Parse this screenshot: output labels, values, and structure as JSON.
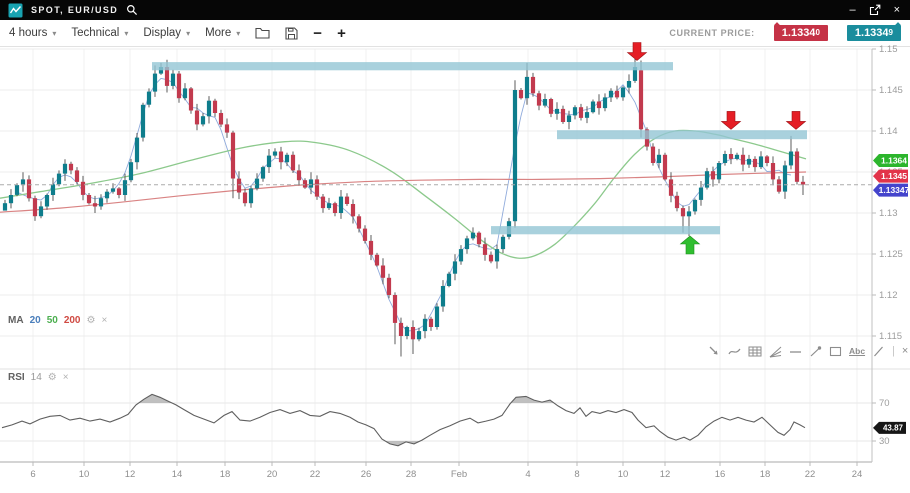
{
  "titlebar": {
    "title": "SPOT, EUR/USD",
    "logo_color": "#18a2b0"
  },
  "ui": {
    "caret": "▾",
    "gear_glyph": "⚙",
    "close_glyph": "×",
    "separator_glyph": "|",
    "minimize_glyph": "–",
    "window_close_glyph": "×"
  },
  "toolbar": {
    "menus": [
      {
        "label": "4 hours"
      },
      {
        "label": "Technical"
      },
      {
        "label": "Display"
      },
      {
        "label": "More"
      }
    ],
    "zoom_out_glyph": "−",
    "zoom_in_glyph": "+",
    "current_price_label": "CURRENT PRICE:",
    "bid": {
      "value": "1.1334",
      "pip": "0",
      "color": "#c53246"
    },
    "ask": {
      "value": "1.1334",
      "pip": "9",
      "color": "#1a8d9d"
    }
  },
  "drawing_toolbar": {
    "tools": [
      "pointer",
      "curve",
      "fib-grid",
      "fan-lines",
      "horizontal-line",
      "trend-line",
      "rectangle",
      "text",
      "ray"
    ],
    "text_tool_label": "Abc"
  },
  "chart_data": {
    "type": "candlestick",
    "symbol": "EUR/USD",
    "timeframe": "4 hours",
    "main": {
      "up_color": "#0e7d8c",
      "down_color": "#c23a4e",
      "y_ticks": [
        1.15,
        1.145,
        1.14,
        1.135,
        1.13,
        1.125,
        1.12,
        1.115
      ],
      "x_ticks": [
        [
          33,
          "6"
        ],
        [
          84,
          "10"
        ],
        [
          130,
          "12"
        ],
        [
          177,
          "14"
        ],
        [
          225,
          "18"
        ],
        [
          272,
          "20"
        ],
        [
          315,
          "22"
        ],
        [
          366,
          "26"
        ],
        [
          411,
          "28"
        ],
        [
          459,
          "Feb"
        ],
        [
          528,
          "4"
        ],
        [
          577,
          "8"
        ],
        [
          623,
          "10"
        ],
        [
          665,
          "12"
        ],
        [
          720,
          "16"
        ],
        [
          765,
          "18"
        ],
        [
          810,
          "22"
        ],
        [
          857,
          "24"
        ]
      ],
      "closes": [
        1.1312,
        1.1322,
        1.1334,
        1.1341,
        1.1318,
        1.1296,
        1.1308,
        1.1322,
        1.1335,
        1.1348,
        1.136,
        1.1352,
        1.1338,
        1.1322,
        1.1312,
        1.1308,
        1.1318,
        1.1326,
        1.133,
        1.1322,
        1.134,
        1.1362,
        1.1392,
        1.1432,
        1.1448,
        1.147,
        1.1478,
        1.1455,
        1.147,
        1.144,
        1.1452,
        1.1425,
        1.1408,
        1.1418,
        1.1437,
        1.1422,
        1.1408,
        1.1398,
        1.1342,
        1.1325,
        1.1312,
        1.133,
        1.1342,
        1.1356,
        1.137,
        1.1375,
        1.1362,
        1.1371,
        1.1352,
        1.134,
        1.1331,
        1.1341,
        1.132,
        1.1306,
        1.1312,
        1.13,
        1.132,
        1.1311,
        1.1296,
        1.1281,
        1.1266,
        1.1249,
        1.1236,
        1.1221,
        1.12,
        1.1166,
        1.115,
        1.1161,
        1.1146,
        1.1156,
        1.1171,
        1.1161,
        1.1186,
        1.1211,
        1.1226,
        1.1241,
        1.1256,
        1.1269,
        1.1276,
        1.1262,
        1.1249,
        1.1241,
        1.1256,
        1.1271,
        1.129,
        1.145,
        1.144,
        1.1466,
        1.1446,
        1.1431,
        1.1439,
        1.1421,
        1.1427,
        1.1411,
        1.1419,
        1.1429,
        1.1416,
        1.1423,
        1.1436,
        1.1428,
        1.1441,
        1.1449,
        1.1441,
        1.1453,
        1.1461,
        1.1478,
        1.1402,
        1.1381,
        1.1361,
        1.1371,
        1.1341,
        1.1321,
        1.1306,
        1.1296,
        1.1302,
        1.1316,
        1.1331,
        1.1351,
        1.1341,
        1.1361,
        1.1372,
        1.1366,
        1.1371,
        1.1359,
        1.1366,
        1.1356,
        1.1369,
        1.1361,
        1.1341,
        1.1326,
        1.1358,
        1.1375,
        1.1338,
        1.13347
      ],
      "wick_pattern_pips": [
        5,
        9,
        3,
        11,
        6,
        4,
        8,
        2,
        10,
        5,
        7,
        3
      ],
      "overrides": {
        "0": {
          "o": 1.1303
        },
        "25": {
          "h": 1.148
        },
        "26": {
          "h": 1.1483
        },
        "38": {
          "l": 1.1318
        },
        "65": {
          "l": 1.114
        },
        "66": {
          "l": 1.1125
        },
        "68": {
          "l": 1.1128
        },
        "85": {
          "h": 1.1462,
          "l": 1.1282
        },
        "87": {
          "h": 1.1483
        },
        "105": {
          "h": 1.1488
        },
        "106": {
          "o": 1.1474,
          "h": 1.1486,
          "l": 1.1392
        },
        "113": {
          "l": 1.1276
        },
        "114": {
          "l": 1.1272
        },
        "131": {
          "h": 1.1394
        },
        "133": {
          "l": 1.1322
        }
      },
      "ma": {
        "ma20": {
          "period": 20,
          "color": "#6b8fd0"
        },
        "ma50": {
          "period": 50,
          "color": "#8cc98c",
          "points": [
            [
              0,
              1.1318
            ],
            [
              40,
              1.1326
            ],
            [
              90,
              1.1336
            ],
            [
              140,
              1.1348
            ],
            [
              190,
              1.1364
            ],
            [
              240,
              1.1379
            ],
            [
              285,
              1.1387
            ],
            [
              315,
              1.1386
            ],
            [
              350,
              1.1376
            ],
            [
              390,
              1.1352
            ],
            [
              425,
              1.1321
            ],
            [
              455,
              1.1293
            ],
            [
              480,
              1.1268
            ],
            [
              500,
              1.1252
            ],
            [
              518,
              1.1245
            ],
            [
              535,
              1.1248
            ],
            [
              555,
              1.1262
            ],
            [
              575,
              1.1285
            ],
            [
              595,
              1.1312
            ],
            [
              615,
              1.1344
            ],
            [
              635,
              1.1372
            ],
            [
              655,
              1.1391
            ],
            [
              675,
              1.14
            ],
            [
              695,
              1.14
            ],
            [
              715,
              1.1396
            ],
            [
              735,
              1.139
            ],
            [
              755,
              1.1384
            ],
            [
              775,
              1.1377
            ],
            [
              806,
              1.1366
            ]
          ]
        },
        "ma200": {
          "period": 200,
          "color": "#d98383",
          "points": [
            [
              0,
              1.1301
            ],
            [
              60,
              1.1306
            ],
            [
              120,
              1.1313
            ],
            [
              180,
              1.1321
            ],
            [
              240,
              1.1328
            ],
            [
              300,
              1.1334
            ],
            [
              360,
              1.1338
            ],
            [
              420,
              1.134
            ],
            [
              480,
              1.1341
            ],
            [
              540,
              1.1341
            ],
            [
              600,
              1.1342
            ],
            [
              660,
              1.1344
            ],
            [
              720,
              1.1347
            ],
            [
              806,
              1.135
            ]
          ]
        }
      },
      "zones": [
        {
          "name": "resistance-zone-1",
          "x1": 152,
          "x2": 673,
          "price_top": 1.1484,
          "price_bottom": 1.1474,
          "color": "#93c5d4"
        },
        {
          "name": "resistance-zone-2",
          "x1": 557,
          "x2": 807,
          "price_top": 1.1401,
          "price_bottom": 1.139,
          "color": "#93c5d4"
        },
        {
          "name": "support-zone",
          "x1": 491,
          "x2": 720,
          "price_top": 1.1284,
          "price_bottom": 1.1274,
          "color": "#93c5d4"
        }
      ],
      "arrows": [
        {
          "x": 637,
          "price": 1.1486,
          "dir": "down",
          "color": "#e51e25"
        },
        {
          "x": 731,
          "price": 1.1402,
          "dir": "down",
          "color": "#e51e25"
        },
        {
          "x": 796,
          "price": 1.1402,
          "dir": "down",
          "color": "#e51e25"
        },
        {
          "x": 690,
          "price": 1.1272,
          "dir": "up",
          "color": "#2fbe2f"
        }
      ],
      "current_price_line": 1.133445,
      "tags": [
        {
          "text": "1.1364",
          "price": 1.1364,
          "color": "#2cb52c"
        },
        {
          "text": "1.1345",
          "price": 1.1345,
          "color": "#e2344a"
        },
        {
          "text": "1.13347",
          "price": 1.13347,
          "color": "#4444cc"
        }
      ],
      "indicator_label": {
        "name": "MA",
        "params": [
          {
            "text": "20",
            "color": "#4a7ebb"
          },
          {
            "text": "50",
            "color": "#4caf50"
          },
          {
            "text": "200",
            "color": "#d04a42"
          }
        ]
      }
    },
    "rsi": {
      "label": {
        "name": "RSI",
        "param": "14"
      },
      "levels": [
        70,
        30
      ],
      "line_color": "#5f5f5f",
      "fill_color": "#b5b5b5",
      "value_tag": "43.87",
      "points": [
        [
          2,
          44
        ],
        [
          12,
          47
        ],
        [
          22,
          51
        ],
        [
          30,
          48
        ],
        [
          40,
          53
        ],
        [
          50,
          56
        ],
        [
          60,
          57
        ],
        [
          70,
          52
        ],
        [
          80,
          54
        ],
        [
          90,
          51
        ],
        [
          100,
          53
        ],
        [
          110,
          50
        ],
        [
          120,
          54
        ],
        [
          128,
          58
        ],
        [
          136,
          68
        ],
        [
          144,
          74
        ],
        [
          152,
          79
        ],
        [
          160,
          76
        ],
        [
          168,
          72
        ],
        [
          176,
          68
        ],
        [
          184,
          63
        ],
        [
          194,
          57
        ],
        [
          204,
          53
        ],
        [
          214,
          49
        ],
        [
          224,
          57
        ],
        [
          232,
          61
        ],
        [
          240,
          52
        ],
        [
          250,
          51
        ],
        [
          260,
          55
        ],
        [
          270,
          60
        ],
        [
          280,
          63
        ],
        [
          290,
          59
        ],
        [
          300,
          62
        ],
        [
          310,
          57
        ],
        [
          320,
          56
        ],
        [
          330,
          61
        ],
        [
          340,
          59
        ],
        [
          350,
          55
        ],
        [
          358,
          50
        ],
        [
          366,
          47
        ],
        [
          374,
          43
        ],
        [
          382,
          32
        ],
        [
          390,
          27
        ],
        [
          398,
          25
        ],
        [
          406,
          29
        ],
        [
          414,
          27
        ],
        [
          422,
          31
        ],
        [
          430,
          36
        ],
        [
          440,
          42
        ],
        [
          450,
          46
        ],
        [
          460,
          51
        ],
        [
          470,
          54
        ],
        [
          478,
          49
        ],
        [
          486,
          51
        ],
        [
          494,
          53
        ],
        [
          502,
          57
        ],
        [
          510,
          69
        ],
        [
          516,
          76
        ],
        [
          526,
          77
        ],
        [
          534,
          73
        ],
        [
          542,
          71
        ],
        [
          550,
          73
        ],
        [
          558,
          67
        ],
        [
          566,
          62
        ],
        [
          574,
          59
        ],
        [
          580,
          65
        ],
        [
          586,
          56
        ],
        [
          592,
          61
        ],
        [
          600,
          59
        ],
        [
          608,
          62
        ],
        [
          616,
          60
        ],
        [
          624,
          63
        ],
        [
          632,
          60
        ],
        [
          638,
          52
        ],
        [
          646,
          44
        ],
        [
          654,
          46
        ],
        [
          660,
          40
        ],
        [
          668,
          34
        ],
        [
          676,
          31
        ],
        [
          684,
          34
        ],
        [
          690,
          31
        ],
        [
          698,
          36
        ],
        [
          706,
          45
        ],
        [
          714,
          51
        ],
        [
          722,
          55
        ],
        [
          730,
          52
        ],
        [
          738,
          55
        ],
        [
          746,
          52
        ],
        [
          754,
          50
        ],
        [
          762,
          55
        ],
        [
          770,
          47
        ],
        [
          778,
          39
        ],
        [
          784,
          36
        ],
        [
          790,
          42
        ],
        [
          794,
          50
        ],
        [
          800,
          47
        ],
        [
          805,
          44
        ]
      ]
    }
  }
}
